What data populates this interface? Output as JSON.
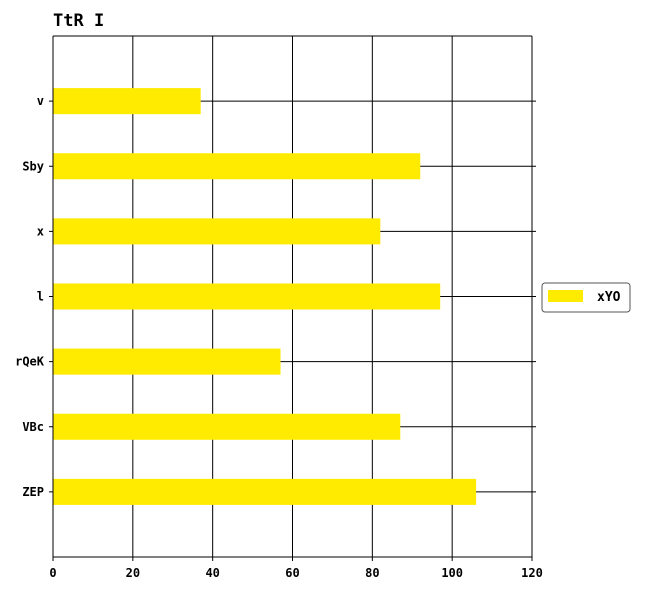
{
  "chart_data": {
    "type": "bar",
    "orientation": "horizontal",
    "title": "TtR I",
    "xlabel": "",
    "ylabel": "",
    "categories": [
      "v",
      "Sby",
      "x",
      "l",
      "rQeK",
      "VBc",
      "ZEP"
    ],
    "series": [
      {
        "name": "xYO",
        "values": [
          37,
          92,
          82,
          97,
          57,
          87,
          106
        ]
      }
    ],
    "xlim": [
      0,
      120
    ],
    "xticks": [
      0,
      20,
      40,
      60,
      80,
      100,
      120
    ],
    "grid": true,
    "legend_position": "right",
    "colors": {
      "bar": "#FFEB00",
      "grid": "#000000",
      "axis": "#000000"
    }
  }
}
